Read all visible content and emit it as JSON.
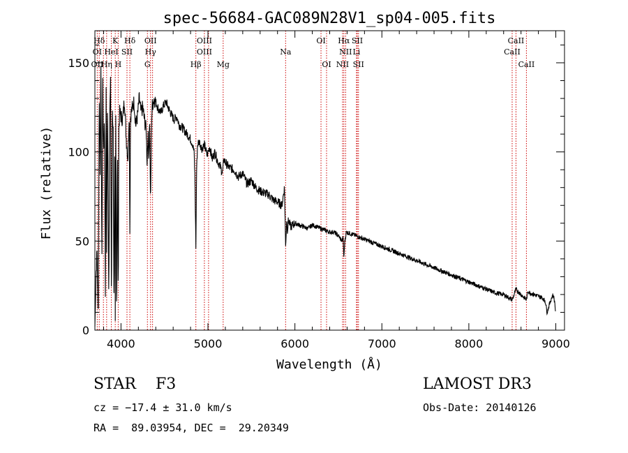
{
  "chart_data": {
    "type": "line",
    "title": "spec-56684-GAC089N28V1_sp04-005.fits",
    "xlabel": "Wavelength (Å)",
    "ylabel": "Flux (relative)",
    "xlim": [
      3700,
      9100
    ],
    "ylim": [
      0,
      168
    ],
    "xticks": [
      4000,
      5000,
      6000,
      7000,
      8000,
      9000
    ],
    "yticks": [
      0,
      50,
      100,
      150
    ],
    "grid": false,
    "series": [
      {
        "name": "flux",
        "x": [
          3700,
          3712,
          3725,
          3738,
          3750,
          3760,
          3770,
          3780,
          3790,
          3800,
          3810,
          3820,
          3830,
          3835,
          3845,
          3860,
          3870,
          3880,
          3890,
          3900,
          3910,
          3920,
          3930,
          3934,
          3940,
          3950,
          3960,
          3968,
          3975,
          3985,
          4000,
          4020,
          4040,
          4060,
          4080,
          4095,
          4102,
          4110,
          4130,
          4150,
          4170,
          4190,
          4210,
          4230,
          4250,
          4270,
          4290,
          4300,
          4310,
          4320,
          4330,
          4340,
          4345,
          4352,
          4360,
          4380,
          4400,
          4430,
          4460,
          4490,
          4520,
          4550,
          4580,
          4610,
          4640,
          4670,
          4700,
          4730,
          4760,
          4790,
          4820,
          4840,
          4850,
          4861,
          4870,
          4880,
          4900,
          4930,
          4960,
          4990,
          5020,
          5050,
          5080,
          5110,
          5140,
          5167,
          5175,
          5183,
          5200,
          5250,
          5300,
          5350,
          5400,
          5450,
          5500,
          5550,
          5600,
          5650,
          5700,
          5750,
          5800,
          5850,
          5880,
          5893,
          5905,
          5915,
          5925,
          5950,
          6000,
          6050,
          6100,
          6150,
          6200,
          6250,
          6300,
          6350,
          6400,
          6450,
          6500,
          6540,
          6555,
          6563,
          6572,
          6590,
          6650,
          6700,
          6750,
          6800,
          6900,
          7000,
          7100,
          7200,
          7300,
          7400,
          7500,
          7600,
          7700,
          7800,
          7900,
          8000,
          8100,
          8200,
          8300,
          8400,
          8500,
          8542,
          8560,
          8600,
          8662,
          8680,
          8700,
          8750,
          8800,
          8850,
          8880,
          8900,
          8930,
          8950,
          8970,
          8990,
          9000
        ],
        "values": [
          2,
          30,
          45,
          5,
          135,
          90,
          150,
          35,
          140,
          98,
          120,
          20,
          145,
          40,
          130,
          18,
          120,
          138,
          12,
          125,
          112,
          8,
          115,
          3,
          120,
          6,
          105,
          12,
          112,
          122,
          120,
          118,
          130,
          108,
          96,
          125,
          55,
          120,
          125,
          128,
          115,
          120,
          130,
          122,
          125,
          118,
          112,
          95,
          110,
          98,
          118,
          68,
          92,
          118,
          126,
          130,
          128,
          124,
          122,
          126,
          128,
          124,
          121,
          118,
          120,
          115,
          114,
          112,
          110,
          108,
          105,
          100,
          86,
          47,
          90,
          104,
          106,
          102,
          104,
          98,
          103,
          96,
          100,
          95,
          92,
          88,
          92,
          96,
          94,
          91,
          90,
          86,
          88,
          82,
          84,
          80,
          78,
          77,
          76,
          73,
          72,
          70,
          80,
          47,
          62,
          56,
          62,
          58,
          60,
          59,
          58,
          57,
          59,
          58,
          57,
          56,
          55,
          55,
          53,
          50,
          52,
          40,
          49,
          55,
          54,
          53,
          52,
          51,
          49,
          47,
          45,
          43,
          41,
          39,
          37,
          35,
          33,
          31,
          29,
          27,
          25,
          23,
          21,
          20,
          17,
          23,
          22,
          20,
          17,
          22,
          21,
          20,
          19,
          18,
          16,
          10,
          15,
          18,
          20,
          15,
          8
        ]
      }
    ],
    "lines": [
      {
        "label": "Hδ",
        "x": 4102,
        "row": 1
      },
      {
        "label": "K",
        "x": 3934,
        "row": 1
      },
      {
        "label": "Hδ",
        "x": 3750,
        "row": 1
      },
      {
        "label": "OII",
        "x": 4340,
        "row": 1
      },
      {
        "label": "OIII",
        "x": 4959,
        "row": 1
      },
      {
        "label": "OI",
        "x": 6300,
        "row": 1
      },
      {
        "label": "Hα",
        "x": 6563,
        "row": 1
      },
      {
        "label": "SII",
        "x": 6717,
        "row": 1
      },
      {
        "label": "CaII",
        "x": 8542,
        "row": 1
      },
      {
        "label": "OI",
        "x": 3727,
        "row": 2
      },
      {
        "label": "HeI",
        "x": 3889,
        "row": 2
      },
      {
        "label": "SII",
        "x": 4069,
        "row": 2
      },
      {
        "label": "Hγ",
        "x": 4340,
        "row": 2
      },
      {
        "label": "OIII",
        "x": 4959,
        "row": 2
      },
      {
        "label": "Na",
        "x": 5893,
        "row": 2
      },
      {
        "label": "NII",
        "x": 6583,
        "row": 2
      },
      {
        "label": "Li",
        "x": 6708,
        "row": 2
      },
      {
        "label": "CaII",
        "x": 8498,
        "row": 2
      },
      {
        "label": "OII",
        "x": 3727,
        "row": 3
      },
      {
        "label": "Hη",
        "x": 3835,
        "row": 3
      },
      {
        "label": "H",
        "x": 3968,
        "row": 3
      },
      {
        "label": "G",
        "x": 4304,
        "row": 3
      },
      {
        "label": "Hβ",
        "x": 4861,
        "row": 3
      },
      {
        "label": "Mg",
        "x": 5175,
        "row": 3
      },
      {
        "label": "OI",
        "x": 6364,
        "row": 3
      },
      {
        "label": "NII",
        "x": 6548,
        "row": 3
      },
      {
        "label": "SII",
        "x": 6731,
        "row": 3
      },
      {
        "label": "CaII",
        "x": 8662,
        "row": 3
      }
    ],
    "markers": [
      3727,
      3750,
      3798,
      3835,
      3889,
      3934,
      3968,
      4069,
      4102,
      4304,
      4340,
      4363,
      4861,
      4959,
      5007,
      5175,
      5893,
      6300,
      6364,
      6548,
      6563,
      6583,
      6708,
      6717,
      6731,
      8498,
      8542,
      8662
    ]
  },
  "info": {
    "class_text": "STAR    F3",
    "cz_text": "cz = −17.4 ± 31.0 km/s",
    "radec_text": "RA =  89.03954, DEC =  29.20349",
    "survey_text": "LAMOST DR3",
    "obsdate_text": "Obs-Date: 20140126"
  }
}
